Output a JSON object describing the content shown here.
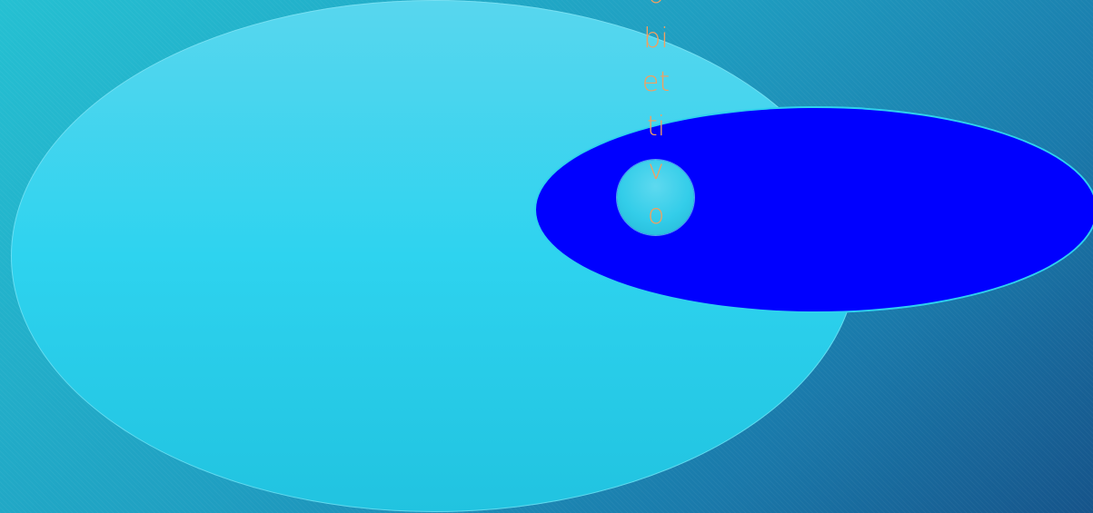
{
  "diagram": {
    "vertical_word": "obiettivo",
    "colors": {
      "background_start": "#25c0d2",
      "background_end": "#16548a",
      "big_ellipse": "#2ed3ef",
      "blue_ellipse": "#0000ff",
      "small_circle": "#33cde9",
      "text": "#f0a061"
    }
  }
}
